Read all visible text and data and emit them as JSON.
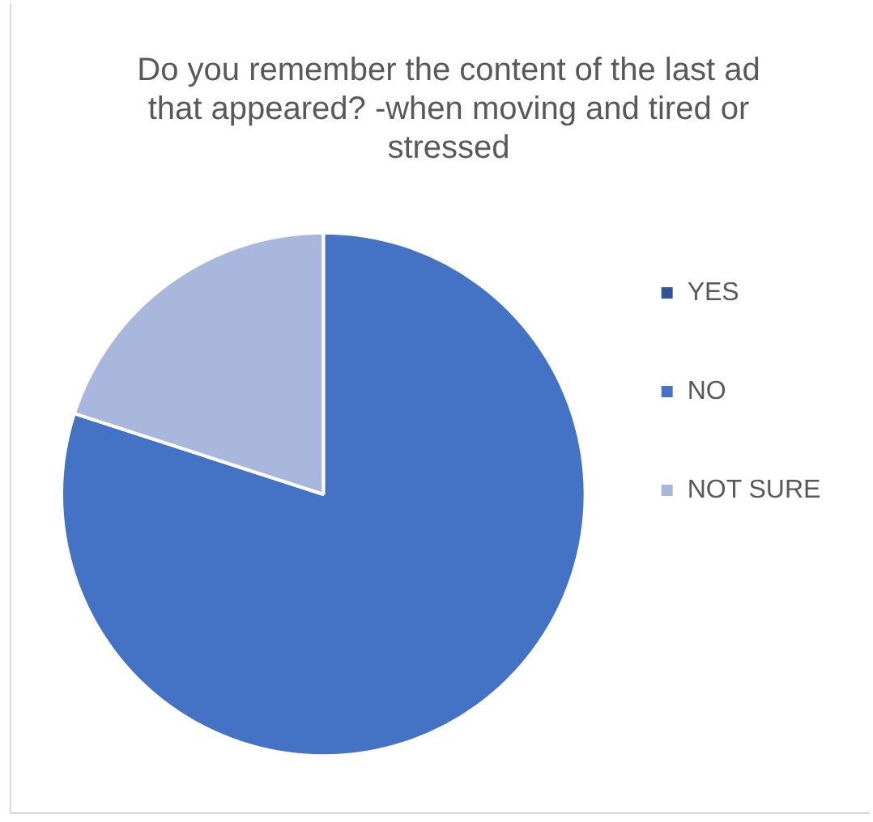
{
  "chart_data": {
    "type": "pie",
    "title": "Do you remember the content of the last ad that appeared? -when moving and tired or stressed",
    "categories": [
      "YES",
      "NO",
      "NOT SURE"
    ],
    "values": [
      0,
      80,
      20
    ],
    "colors": [
      "#2f5597",
      "#4472c4",
      "#a9b7dc"
    ],
    "legend": "right"
  }
}
